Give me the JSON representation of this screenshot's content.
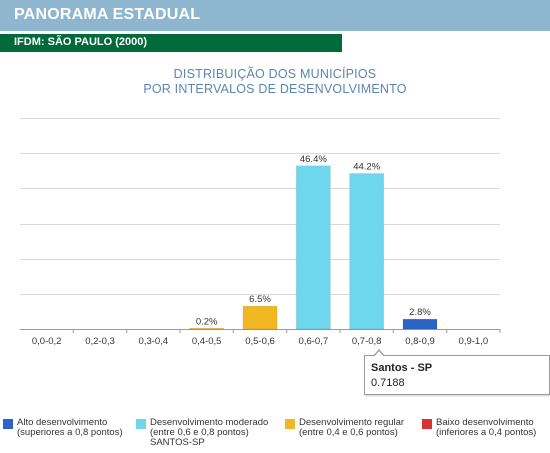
{
  "header": {
    "title": "PANORAMA ESTADUAL"
  },
  "subheader": {
    "title": "IFDM: SÃO PAULO (2000)"
  },
  "chart_title": {
    "line1": "DISTRIBUIÇÃO DOS MUNICÍPIOS",
    "line2": "POR INTERVALOS DE DESENVOLVIMENTO"
  },
  "colors": {
    "header": "#8fb6cf",
    "subheader": "#006a3a",
    "title_text": "#5b86b0",
    "alto": "#2e63c6",
    "moderado": "#6ed7ee",
    "regular": "#f2b824",
    "baixo": "#d73333"
  },
  "chart_data": {
    "type": "bar",
    "categories": [
      "0,0-0,2",
      "0,2-0,3",
      "0,3-0,4",
      "0,4-0,5",
      "0,5-0,6",
      "0,6-0,7",
      "0,7-0,8",
      "0,8-0,9",
      "0,9-1,0"
    ],
    "values": [
      0,
      0,
      0,
      0.2,
      6.5,
      46.4,
      44.2,
      2.8,
      0
    ],
    "data_labels": [
      "",
      "",
      "",
      "0.2%",
      "6.5%",
      "46.4%",
      "44.2%",
      "2.8%",
      ""
    ],
    "bar_classes": [
      "baixo",
      "baixo",
      "baixo",
      "regular",
      "regular",
      "moderado",
      "moderado",
      "alto",
      "alto"
    ],
    "ylim": [
      0,
      60
    ],
    "grid": true,
    "legend_position": "bottom"
  },
  "tooltip": {
    "title": "Santos - SP",
    "value": "0.7188"
  },
  "legend": [
    {
      "key": "alto",
      "line1": "Alto desenvolvimento",
      "line2": "(superiores a 0,8 pontos)",
      "line3": ""
    },
    {
      "key": "moderado",
      "line1": "Desenvolvimento moderado",
      "line2": "(entre 0,6 e 0,8 pontos)",
      "line3": "SANTOS-SP"
    },
    {
      "key": "regular",
      "line1": "Desenvolvimento regular",
      "line2": "(entre 0,4 e 0,6 pontos)",
      "line3": ""
    },
    {
      "key": "baixo",
      "line1": "Baixo desenvolvimento",
      "line2": "(inferiores a 0,4 pontos)",
      "line3": ""
    }
  ]
}
